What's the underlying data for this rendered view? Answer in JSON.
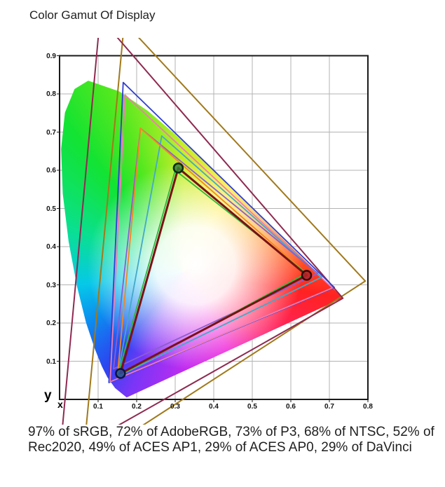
{
  "title": "Color Gamut Of Display",
  "caption": {
    "lines": [
      "97% of sRGB, 72% of AdobeRGB, 73% of P3, 68% of NTSC, 52% of",
      "Rec2020, 49% of ACES AP1, 29% of ACES AP0, 29% of DaVinci"
    ]
  },
  "chart_data": {
    "type": "chromaticity-diagram",
    "title": "Color Gamut Of Display",
    "xlabel": "x",
    "ylabel": "y",
    "xlim": [
      0,
      0.8
    ],
    "ylim": [
      0,
      0.9
    ],
    "grid": true,
    "x_ticks": [
      "0.1",
      "0.2",
      "0.3",
      "0.4",
      "0.5",
      "0.6",
      "0.7",
      "0.8"
    ],
    "y_ticks": [
      "0.1",
      "0.2",
      "0.3",
      "0.4",
      "0.5",
      "0.6",
      "0.7",
      "0.8",
      "0.9"
    ],
    "coverage": [
      {
        "gamut": "sRGB",
        "percent": 97
      },
      {
        "gamut": "AdobeRGB",
        "percent": 72
      },
      {
        "gamut": "P3",
        "percent": 73
      },
      {
        "gamut": "NTSC",
        "percent": 68
      },
      {
        "gamut": "Rec2020",
        "percent": 52
      },
      {
        "gamut": "ACES AP1",
        "percent": 49
      },
      {
        "gamut": "ACES AP0",
        "percent": 29
      },
      {
        "gamut": "DaVinci",
        "percent": 29
      }
    ],
    "display_primaries": {
      "red": {
        "xy": [
          0.641,
          0.325
        ],
        "fill": "#b32428",
        "ring": "#33080a"
      },
      "green": {
        "xy": [
          0.308,
          0.606
        ],
        "fill": "#37813a",
        "ring": "#0d2b10"
      },
      "blue": {
        "xy": [
          0.158,
          0.068
        ],
        "fill": "#2b4fa0",
        "ring": "#0a163c"
      }
    },
    "gamuts": [
      {
        "name": "DaVinci",
        "color": "#a1791b",
        "width": 2,
        "vertices": [
          [
            0.793,
            0.31
          ],
          [
            0.168,
            0.988
          ],
          [
            0.06,
            -0.17
          ]
        ]
      },
      {
        "name": "ACES AP0",
        "color": "#8e2a50",
        "width": 2,
        "vertices": [
          [
            0.735,
            0.265
          ],
          [
            0.105,
            1.0
          ],
          [
            0.0,
            -0.155
          ]
        ]
      },
      {
        "name": "ACES AP1",
        "color": "#2f3fd3",
        "width": 1.8,
        "vertices": [
          [
            0.713,
            0.293
          ],
          [
            0.165,
            0.83
          ],
          [
            0.128,
            0.044
          ]
        ]
      },
      {
        "name": "Rec2020",
        "color": "#ee7db2",
        "width": 1.8,
        "vertices": [
          [
            0.708,
            0.292
          ],
          [
            0.17,
            0.797
          ],
          [
            0.131,
            0.046
          ]
        ]
      },
      {
        "name": "P3",
        "color": "#45a8c8",
        "width": 1.8,
        "vertices": [
          [
            0.68,
            0.32
          ],
          [
            0.265,
            0.69
          ],
          [
            0.15,
            0.06
          ]
        ]
      },
      {
        "name": "NTSC",
        "color": "#8a5ed0",
        "width": 1.8,
        "vertices": [
          [
            0.67,
            0.33
          ],
          [
            0.21,
            0.71
          ],
          [
            0.14,
            0.08
          ]
        ]
      },
      {
        "name": "AdobeRGB",
        "color": "#f6861f",
        "width": 1.8,
        "vertices": [
          [
            0.64,
            0.33
          ],
          [
            0.21,
            0.71
          ],
          [
            0.15,
            0.06
          ]
        ]
      },
      {
        "name": "sRGB",
        "color": "#2db83d",
        "width": 1.8,
        "vertices": [
          [
            0.64,
            0.33
          ],
          [
            0.3,
            0.6
          ],
          [
            0.15,
            0.06
          ]
        ]
      },
      {
        "name": "Display",
        "color": "#7a1115",
        "width": 3,
        "vertices": [
          [
            0.641,
            0.325
          ],
          [
            0.308,
            0.606
          ],
          [
            0.158,
            0.068
          ]
        ],
        "markers": true
      }
    ],
    "spectral_locus": [
      [
        0.1741,
        0.005
      ],
      [
        0.144,
        0.0297
      ],
      [
        0.1241,
        0.0578
      ],
      [
        0.1096,
        0.0868
      ],
      [
        0.0913,
        0.1327
      ],
      [
        0.0687,
        0.2007
      ],
      [
        0.0454,
        0.295
      ],
      [
        0.0235,
        0.4127
      ],
      [
        0.0082,
        0.5384
      ],
      [
        0.0039,
        0.6548
      ],
      [
        0.0139,
        0.7502
      ],
      [
        0.0389,
        0.812
      ],
      [
        0.0743,
        0.8338
      ],
      [
        0.1547,
        0.8059
      ],
      [
        0.2296,
        0.7543
      ],
      [
        0.3016,
        0.6923
      ],
      [
        0.3731,
        0.6245
      ],
      [
        0.4441,
        0.5547
      ],
      [
        0.5125,
        0.4866
      ],
      [
        0.5752,
        0.4242
      ],
      [
        0.627,
        0.3725
      ],
      [
        0.6658,
        0.334
      ],
      [
        0.6915,
        0.3083
      ],
      [
        0.714,
        0.2859
      ],
      [
        0.7347,
        0.2653
      ]
    ],
    "styles": {
      "grid_color": "#b3b3b3",
      "border_color": "#1a1a1a",
      "marker_radius": 6.5
    }
  }
}
